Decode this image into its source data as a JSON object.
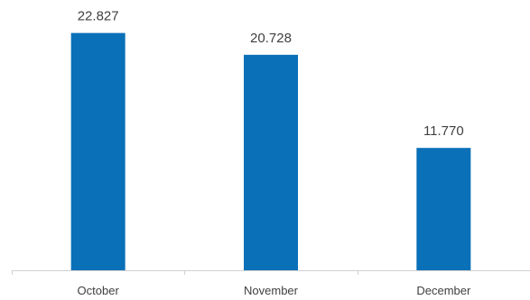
{
  "chart_data": {
    "type": "bar",
    "categories": [
      "October",
      "November",
      "December"
    ],
    "values": [
      22.827,
      20.728,
      11.77
    ],
    "value_labels": [
      "22.827",
      "20.728",
      "11.770"
    ],
    "title": "",
    "xlabel": "",
    "ylabel": "",
    "ylim": [
      0,
      26
    ],
    "grid": false,
    "legend": "none",
    "colors": {
      "bar": "#0a70b8",
      "axis": "#d0d0d0",
      "text": "#404040"
    }
  }
}
